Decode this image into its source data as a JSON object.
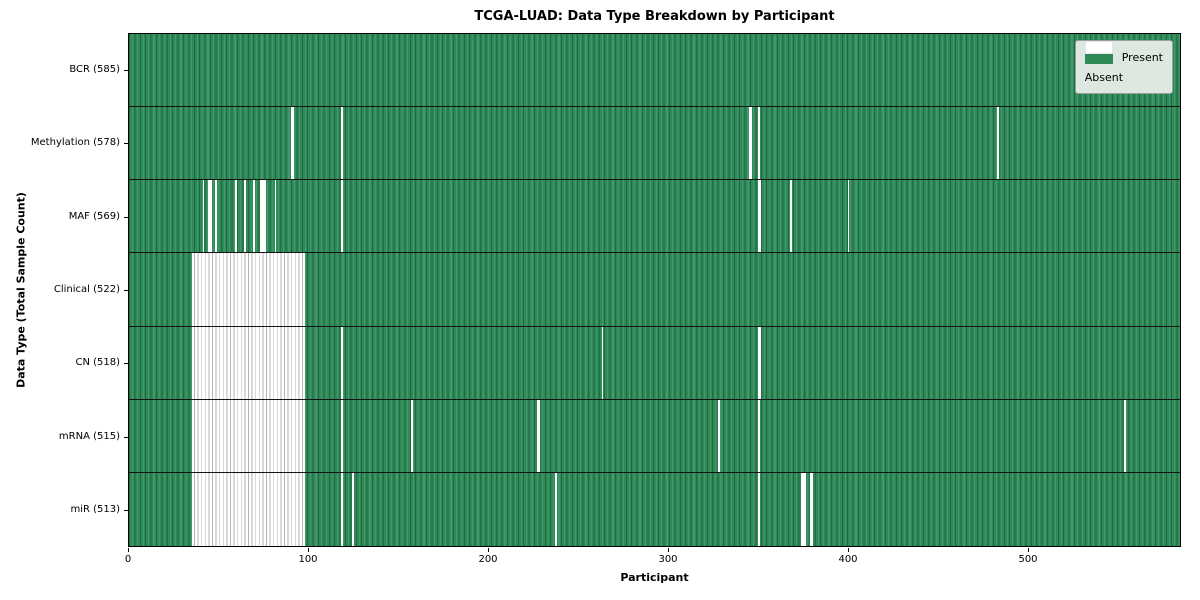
{
  "chart_data": {
    "type": "heatmap",
    "title": "TCGA-LUAD: Data Type Breakdown by Participant",
    "xlabel": "Participant",
    "ylabel": "Data Type (Total Sample Count)",
    "x_ticks": [
      0,
      100,
      200,
      300,
      400,
      500
    ],
    "x_max": 585,
    "grid": false,
    "legend_position": "upper right",
    "colors": {
      "present": "#2e8b57",
      "absent": "#ffffff"
    },
    "legend": {
      "items": [
        {
          "label": "Present",
          "color": "#2e8b57"
        },
        {
          "label": "Absent",
          "color": "#ffffff"
        }
      ]
    },
    "rows": [
      {
        "label": "BCR (585)",
        "data_type": "BCR",
        "present_count": 585,
        "absent_ranges": []
      },
      {
        "label": "Methylation (578)",
        "data_type": "Methylation",
        "present_count": 578,
        "absent_ranges": [
          [
            90,
            92
          ],
          [
            118,
            119
          ],
          [
            345,
            347
          ],
          [
            350,
            351
          ],
          [
            483,
            484
          ]
        ]
      },
      {
        "label": "MAF (569)",
        "data_type": "MAF",
        "present_count": 569,
        "absent_ranges": [
          [
            41,
            42
          ],
          [
            44,
            46
          ],
          [
            48,
            49
          ],
          [
            59,
            60
          ],
          [
            64,
            65
          ],
          [
            69,
            70
          ],
          [
            73,
            76
          ],
          [
            81,
            82
          ],
          [
            118,
            119
          ],
          [
            350,
            352
          ],
          [
            368,
            369
          ],
          [
            400,
            401
          ]
        ]
      },
      {
        "label": "Clinical (522)",
        "data_type": "Clinical",
        "present_count": 522,
        "absent_ranges": [
          [
            35,
            98
          ]
        ]
      },
      {
        "label": "CN (518)",
        "data_type": "CN",
        "present_count": 518,
        "absent_ranges": [
          [
            35,
            98
          ],
          [
            118,
            119
          ],
          [
            263,
            264
          ],
          [
            350,
            352
          ]
        ]
      },
      {
        "label": "mRNA (515)",
        "data_type": "mRNA",
        "present_count": 515,
        "absent_ranges": [
          [
            35,
            98
          ],
          [
            118,
            119
          ],
          [
            157,
            158
          ],
          [
            227,
            229
          ],
          [
            328,
            329
          ],
          [
            350,
            351
          ],
          [
            554,
            555
          ]
        ]
      },
      {
        "label": "miR (513)",
        "data_type": "miR",
        "present_count": 513,
        "absent_ranges": [
          [
            35,
            98
          ],
          [
            118,
            119
          ],
          [
            124,
            125
          ],
          [
            237,
            238
          ],
          [
            350,
            351
          ],
          [
            374,
            377
          ],
          [
            379,
            381
          ]
        ]
      }
    ]
  }
}
